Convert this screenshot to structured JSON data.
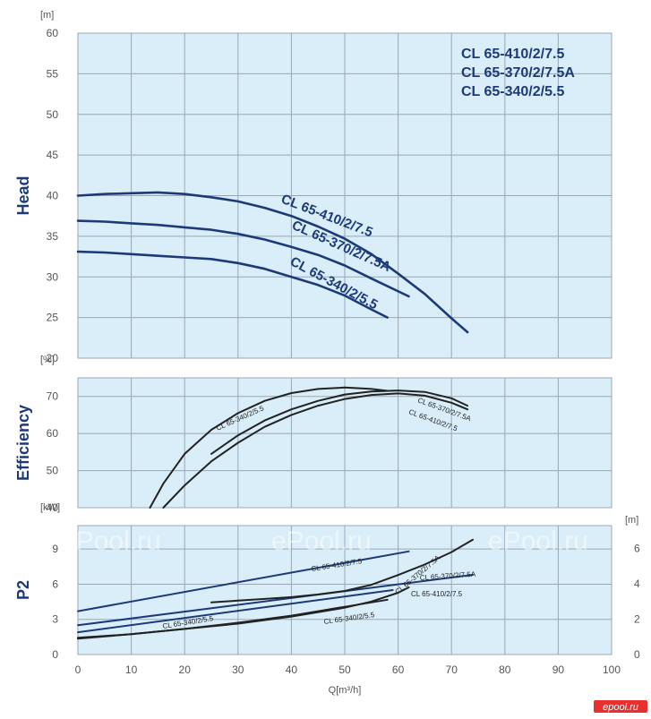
{
  "chart_data": [
    {
      "type": "line",
      "panel": "head",
      "ylabel": "Head",
      "yunit": "[m]",
      "ylim": [
        20,
        60
      ],
      "yticks": [
        20,
        25,
        30,
        35,
        40,
        45,
        50,
        55,
        60
      ],
      "xlim": [
        0,
        100
      ],
      "grid": true,
      "legend": [
        "CL 65-410/2/7.5",
        "CL 65-370/2/7.5A",
        "CL 65-340/2/5.5"
      ],
      "legend_position": "top-right",
      "series": [
        {
          "name": "CL 65-410/2/7.5",
          "color": "#1d3a78",
          "x": [
            0,
            5,
            10,
            15,
            20,
            25,
            30,
            35,
            40,
            45,
            50,
            55,
            60,
            65,
            70,
            73
          ],
          "y": [
            40.0,
            40.2,
            40.3,
            40.4,
            40.2,
            39.8,
            39.3,
            38.5,
            37.5,
            36.2,
            34.7,
            32.8,
            30.4,
            27.9,
            24.9,
            23.2
          ]
        },
        {
          "name": "CL 65-370/2/7.5A",
          "color": "#1d3a78",
          "x": [
            0,
            5,
            10,
            15,
            20,
            25,
            30,
            35,
            40,
            45,
            50,
            55,
            62
          ],
          "y": [
            36.9,
            36.8,
            36.6,
            36.4,
            36.1,
            35.8,
            35.3,
            34.6,
            33.7,
            32.7,
            31.4,
            29.8,
            27.6
          ]
        },
        {
          "name": "CL 65-340/2/5.5",
          "color": "#1d3a78",
          "x": [
            0,
            5,
            10,
            15,
            20,
            25,
            30,
            35,
            40,
            45,
            50,
            55,
            58
          ],
          "y": [
            33.1,
            33.0,
            32.8,
            32.6,
            32.4,
            32.2,
            31.7,
            31.0,
            30.0,
            29.0,
            27.7,
            26.0,
            25.0
          ]
        }
      ]
    },
    {
      "type": "line",
      "panel": "efficiency",
      "ylabel": "Efficiency",
      "yunit": "[%]",
      "ylim": [
        40,
        75
      ],
      "yticks": [
        40,
        50,
        60,
        70
      ],
      "xlim": [
        0,
        100
      ],
      "grid": true,
      "series": [
        {
          "name": "CL 65-340/2/5.5",
          "color": "#222222",
          "x": [
            13.5,
            16,
            20,
            25,
            30,
            35,
            40,
            45,
            50,
            55,
            58
          ],
          "y": [
            40.0,
            46.5,
            54.5,
            61.0,
            65.5,
            68.8,
            70.9,
            72.0,
            72.4,
            72.0,
            71.5
          ]
        },
        {
          "name": "CL 65-370/2/7.5A",
          "color": "#222222",
          "x": [
            25,
            30,
            35,
            40,
            45,
            50,
            55,
            60,
            65,
            70,
            73
          ],
          "y": [
            54.5,
            59.5,
            63.5,
            66.5,
            68.8,
            70.5,
            71.3,
            71.6,
            71.2,
            69.5,
            67.5
          ]
        },
        {
          "name": "CL 65-410/2/7.5",
          "color": "#222222",
          "x": [
            16,
            20,
            25,
            30,
            35,
            40,
            45,
            50,
            55,
            60,
            65,
            70,
            73
          ],
          "y": [
            40.0,
            46.0,
            52.5,
            57.5,
            61.8,
            65.0,
            67.5,
            69.3,
            70.4,
            70.8,
            70.2,
            68.3,
            66.5
          ]
        }
      ]
    },
    {
      "type": "line",
      "panel": "p2",
      "ylabel": "P2",
      "yunit": "[kW]",
      "right_yunit": "[m]",
      "xlabel": "Q[m³/h]",
      "ylim": [
        0,
        11
      ],
      "yticks": [
        0,
        3,
        6,
        9
      ],
      "right_ylim": [
        0,
        7.3
      ],
      "right_yticks": [
        0,
        2,
        4,
        6
      ],
      "xlim": [
        0,
        100
      ],
      "xticks": [
        0,
        10,
        20,
        30,
        40,
        50,
        60,
        70,
        80,
        90,
        100
      ],
      "grid": true,
      "series": [
        {
          "name": "CL 65-410/2/7.5",
          "color": "#1d3a78",
          "axis": "kW",
          "x": [
            0,
            62
          ],
          "y": [
            3.7,
            8.8
          ]
        },
        {
          "name": "CL 65-370/2/7.5A",
          "color": "#1d3a78",
          "axis": "kW",
          "x": [
            0,
            74
          ],
          "y": [
            2.5,
            6.8
          ]
        },
        {
          "name": "CL 65-340/2/5.5",
          "color": "#1d3a78",
          "axis": "kW",
          "x": [
            0,
            59
          ],
          "y": [
            1.9,
            5.5
          ]
        },
        {
          "name": "CL 65-370/2/7.5A",
          "color": "#222222",
          "axis": "m",
          "x": [
            25,
            30,
            35,
            40,
            45,
            50,
            55,
            60,
            65,
            70,
            74
          ],
          "y": [
            2.95,
            3.05,
            3.15,
            3.25,
            3.4,
            3.6,
            3.95,
            4.5,
            5.1,
            5.8,
            6.5
          ]
        },
        {
          "name": "CL 65-410/2/7.5",
          "color": "#222222",
          "axis": "m",
          "x": [
            0,
            10,
            20,
            30,
            40,
            50,
            55,
            60,
            62
          ],
          "y": [
            0.95,
            1.15,
            1.45,
            1.75,
            2.15,
            2.65,
            3.0,
            3.5,
            3.8
          ]
        },
        {
          "name": "CL 65-340/2/5.5",
          "color": "#222222",
          "axis": "m",
          "x": [
            0,
            10,
            20,
            30,
            40,
            50,
            58
          ],
          "y": [
            0.9,
            1.15,
            1.45,
            1.8,
            2.2,
            2.7,
            3.1
          ]
        }
      ]
    }
  ],
  "curve_labels": {
    "head": [
      "CL 65-410/2/7.5",
      "CL 65-370/2/7.5A",
      "CL 65-340/2/5.5"
    ],
    "efficiency": [
      "CL 65-340/2/5.5",
      "CL 65-370/2/7.5A",
      "CL 65-410/2/7.5"
    ],
    "p2": [
      "CL 65-410/2/7.5",
      "CL 65-370/2/7.5A",
      "CL 65-370/2/7.5A",
      "CL 65-410/2/7.5",
      "CL 65-340/2/5.5",
      "CL 65-340/2/5.5"
    ]
  },
  "watermarks": [
    "ePool.ru",
    "ePool.ru",
    "ePool.ru"
  ],
  "brand": "epool.ru",
  "colors": {
    "plot_bg": "#d9eef8",
    "grid": "#9aa7b3",
    "navy": "#1d3a78",
    "dark": "#222222",
    "brand_bg": "#e8312f"
  }
}
